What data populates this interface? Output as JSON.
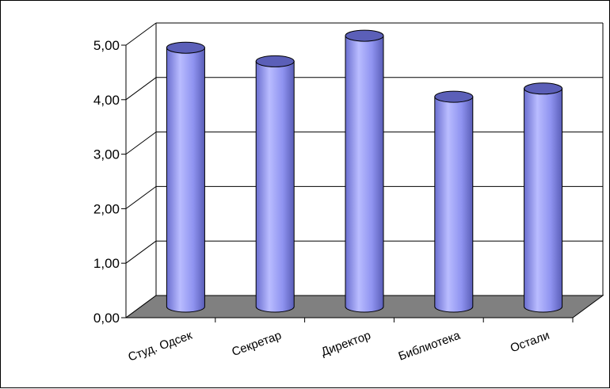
{
  "chart_data": {
    "type": "bar",
    "style": "3d-cylinder",
    "categories": [
      "Студ. Одсек",
      "Секретар",
      "Директор",
      "Библиотека",
      "Остали"
    ],
    "values": [
      4.75,
      4.5,
      4.97,
      3.85,
      4.0
    ],
    "ylim": [
      0,
      5
    ],
    "yticks": [
      "0,00",
      "1,00",
      "2,00",
      "3,00",
      "4,00",
      "5,00"
    ],
    "title": "",
    "xlabel": "",
    "ylabel": "",
    "grid": true,
    "legend": "none",
    "colors": {
      "bar": "#8f93f0",
      "bar_dark": "#5b5fb8",
      "bar_light": "#c4c7ff",
      "floor": "#808080",
      "grid": "#000000"
    }
  }
}
